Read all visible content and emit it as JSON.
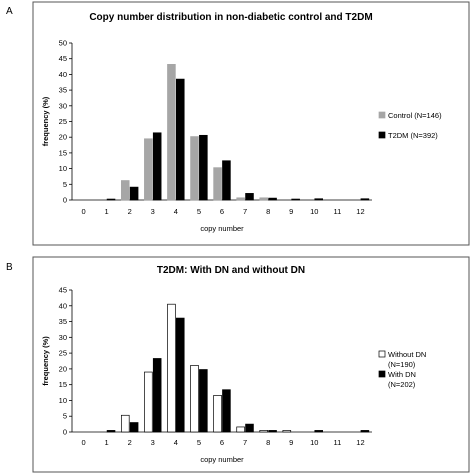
{
  "chart_data": [
    {
      "panel": "A",
      "type": "bar",
      "title": "Copy number distribution in non-diabetic control and T2DM",
      "xlabel": "copy number",
      "ylabel": "frequency (%)",
      "ylim": [
        0,
        50
      ],
      "yticks": [
        0,
        5,
        10,
        15,
        20,
        25,
        30,
        35,
        40,
        45,
        50
      ],
      "categories": [
        "0",
        "1",
        "2",
        "3",
        "4",
        "5",
        "6",
        "7",
        "8",
        "9",
        "10",
        "11",
        "12"
      ],
      "legend_position": "right",
      "series": [
        {
          "name": "Control (N=146)",
          "color": "#a6a6a6",
          "stroke": "#a6a6a6",
          "values": [
            0,
            0,
            6.2,
            19.5,
            43.2,
            20.2,
            10.3,
            0.7,
            0.7,
            0,
            0,
            0,
            0
          ]
        },
        {
          "name": "T2DM (N=392)",
          "color": "#000000",
          "stroke": "#000000",
          "values": [
            0,
            0.3,
            4.1,
            21.4,
            38.5,
            20.6,
            12.5,
            2.1,
            0.6,
            0.3,
            0.4,
            0,
            0.4
          ]
        }
      ]
    },
    {
      "panel": "B",
      "type": "bar",
      "title": "T2DM: With DN and without DN",
      "xlabel": "copy number",
      "ylabel": "frequency (%)",
      "ylim": [
        0,
        45
      ],
      "yticks": [
        0,
        5,
        10,
        15,
        20,
        25,
        30,
        35,
        40,
        45
      ],
      "categories": [
        "0",
        "1",
        "2",
        "3",
        "4",
        "5",
        "6",
        "7",
        "8",
        "9",
        "10",
        "11",
        "12"
      ],
      "legend_position": "right",
      "series": [
        {
          "name": "Without DN (N=190)",
          "color": "#ffffff",
          "stroke": "#000000",
          "values": [
            0,
            0,
            5.3,
            19.0,
            40.5,
            21.1,
            11.6,
            1.6,
            0.5,
            0.5,
            0,
            0,
            0
          ]
        },
        {
          "name": "With DN (N=202)",
          "color": "#000000",
          "stroke": "#000000",
          "values": [
            0,
            0.5,
            3.0,
            23.3,
            36.1,
            19.8,
            13.4,
            2.5,
            0.5,
            0,
            0.5,
            0,
            0.5
          ]
        }
      ]
    }
  ]
}
